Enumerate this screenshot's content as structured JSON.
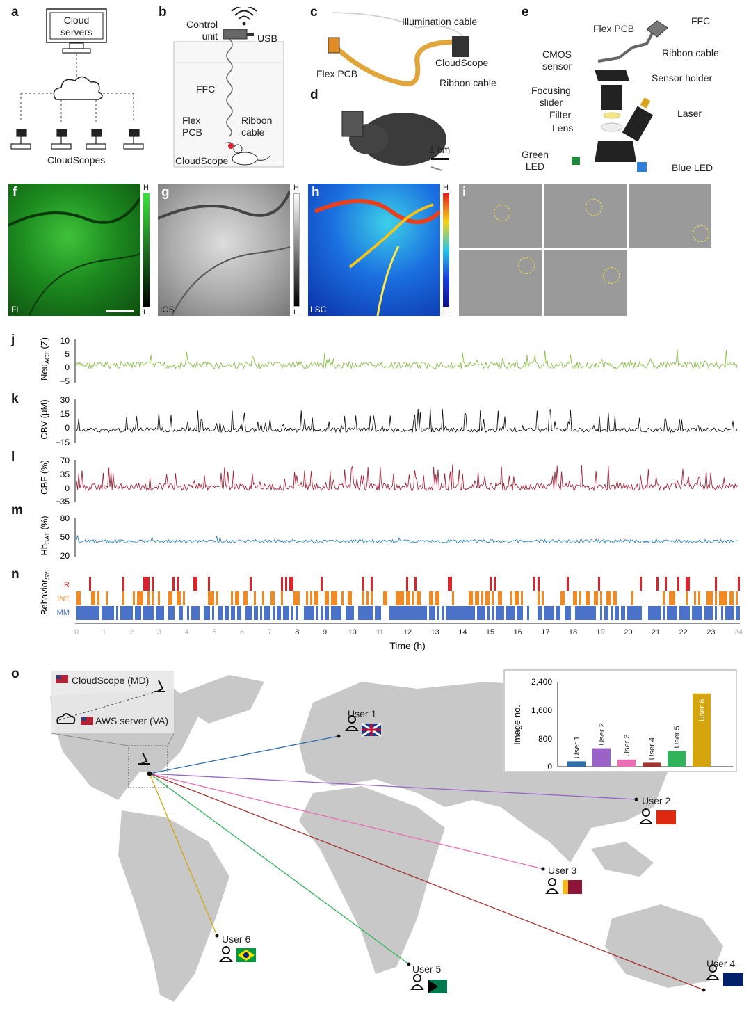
{
  "panel_labels": [
    "a",
    "b",
    "c",
    "d",
    "e",
    "f",
    "g",
    "h",
    "i",
    "j",
    "k",
    "l",
    "m",
    "n",
    "o"
  ],
  "panel_a": {
    "server_label_1": "Cloud",
    "server_label_2": "servers",
    "scopes_label": "CloudScopes"
  },
  "panel_b": {
    "control_1": "Control",
    "control_2": "unit",
    "usb": "USB",
    "ffc": "FFC",
    "flex_1": "Flex",
    "flex_2": "PCB",
    "ribbon_1": "Ribbon",
    "ribbon_2": "cable",
    "cloudscope": "CloudScope"
  },
  "panel_c": {
    "illumination": "Illumination cable",
    "flex_pcb": "Flex PCB",
    "cloudscope": "CloudScope",
    "ribbon": "Ribbon cable"
  },
  "panel_d": {
    "scale": "1 cm"
  },
  "panel_e": {
    "flex_pcb": "Flex PCB",
    "ffc": "FFC",
    "cmos_1": "CMOS",
    "cmos_2": "sensor",
    "ribbon": "Ribbon cable",
    "sensor_holder": "Sensor holder",
    "focusing_1": "Focusing",
    "focusing_2": "slider",
    "filter": "Filter",
    "laser": "Laser",
    "lens": "Lens",
    "green_1": "Green",
    "green_2": "LED",
    "blue": "Blue LED"
  },
  "imaging": {
    "f_tag": "FL",
    "g_tag": "IOS",
    "h_tag": "LSC",
    "high": "H",
    "low": "L"
  },
  "traces": {
    "j": {
      "ylabel_main": "Neu",
      "ylabel_sub": "ACT",
      "ylabel_unit": " (Z)",
      "ticks": [
        "10",
        "5",
        "0",
        "−5"
      ],
      "color": "#8dbf4e"
    },
    "k": {
      "ylabel": "CBV (μM)",
      "ticks": [
        "30",
        "15",
        "0",
        "−15"
      ],
      "color": "#111111"
    },
    "l": {
      "ylabel": "CBF (%)",
      "ticks": [
        "70",
        "35",
        "0",
        "−35"
      ],
      "color": "#a3243b"
    },
    "m": {
      "ylabel_main": "Hb",
      "ylabel_sub": "SAT",
      "ylabel_unit": " (%)",
      "ticks": [
        "80",
        "50",
        "20"
      ],
      "color": "#2f86c0"
    },
    "n": {
      "ylabel_main": "Behavior",
      "ylabel_sub": "SYL",
      "rows": [
        "R",
        "INT",
        "MM"
      ],
      "colors": [
        "#d7262e",
        "#f08a24",
        "#4a72c9"
      ]
    },
    "time_ticks": [
      "0",
      "1",
      "2",
      "3",
      "4",
      "5",
      "6",
      "7",
      "8",
      "9",
      "10",
      "11",
      "12",
      "13",
      "14",
      "15",
      "16",
      "17",
      "18",
      "19",
      "20",
      "21",
      "22",
      "23",
      "24"
    ],
    "xlabel": "Time (h)"
  },
  "map": {
    "inset_cloudscope": "CloudScope (MD)",
    "inset_aws": "AWS server (VA)",
    "users": [
      "User 1",
      "User 2",
      "User 3",
      "User 4",
      "User 5",
      "User 6"
    ]
  },
  "chart_data": {
    "type": "bar",
    "categories": [
      "User 1",
      "User 2",
      "User 3",
      "User 4",
      "User 5",
      "User 6"
    ],
    "values": [
      150,
      520,
      200,
      110,
      440,
      2070
    ],
    "colors": [
      "#2f6fa8",
      "#9a63c8",
      "#e86fb4",
      "#a3332e",
      "#30b35a",
      "#d4a50f"
    ],
    "ylabel": "Image no.",
    "ylim": [
      0,
      2400
    ],
    "yticks": [
      "0",
      "800",
      "1,600",
      "2,400"
    ]
  }
}
